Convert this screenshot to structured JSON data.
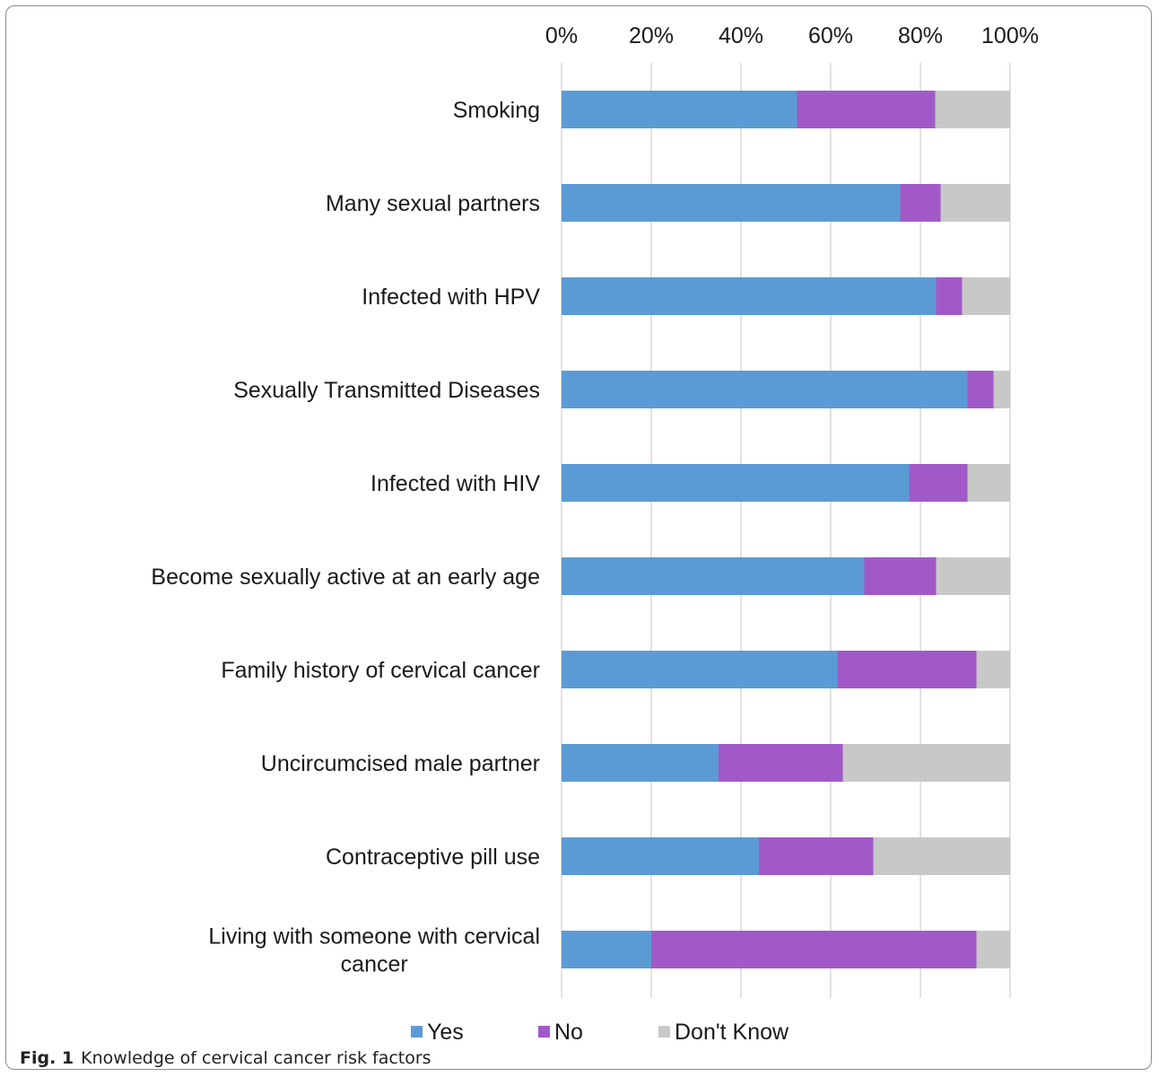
{
  "caption": {
    "label": "Fig. 1",
    "text": "Knowledge of cervical cancer risk factors"
  },
  "chart_data": {
    "type": "bar",
    "orientation": "horizontal",
    "stacked": "percent",
    "categories": [
      "Smoking",
      "Many sexual partners",
      "Infected with HPV",
      "Sexually Transmitted Diseases",
      "Infected with HIV",
      "Become sexually active at an early age",
      "Family history of cervical cancer",
      "Uncircumcised male partner",
      "Contraceptive pill use",
      "Living with someone with cervical cancer"
    ],
    "category_lines": [
      [
        "Smoking"
      ],
      [
        "Many sexual partners"
      ],
      [
        "Infected with HPV"
      ],
      [
        "Sexually Transmitted Diseases"
      ],
      [
        "Infected with HIV"
      ],
      [
        "Become sexually active at an early age"
      ],
      [
        "Family history of cervical cancer"
      ],
      [
        "Uncircumcised male partner"
      ],
      [
        "Contraceptive pill use"
      ],
      [
        "Living with someone with cervical",
        "cancer"
      ]
    ],
    "series": [
      {
        "name": "Yes",
        "color": "#5b9bd5",
        "values": [
          52.5,
          75.5,
          83.5,
          90.5,
          77.5,
          67.5,
          61.5,
          35,
          44,
          20
        ]
      },
      {
        "name": "No",
        "color": "#a259c8",
        "values": [
          30.8,
          9,
          5.8,
          5.8,
          13,
          16,
          31,
          27.7,
          25.5,
          72.5
        ]
      },
      {
        "name": "Don't Know",
        "color": "#c8c8c8",
        "values": [
          16.7,
          15.5,
          10.7,
          3.7,
          9.5,
          16.5,
          7.5,
          37.3,
          30.5,
          7.5
        ]
      }
    ],
    "xlim": [
      0,
      100
    ],
    "x_ticks": [
      0,
      20,
      40,
      60,
      80,
      100
    ],
    "x_tick_labels": [
      "0%",
      "20%",
      "40%",
      "60%",
      "80%",
      "100%"
    ],
    "x_axis_position": "top",
    "grid": "vertical",
    "legend_position": "bottom"
  }
}
